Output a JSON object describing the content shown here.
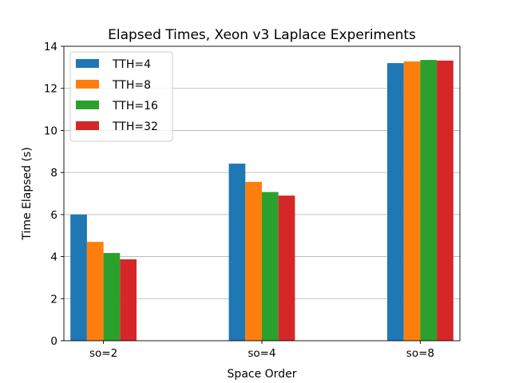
{
  "chart_data": {
    "type": "bar",
    "title": "Elapsed Times, Xeon v3 Laplace Experiments",
    "xlabel": "Space Order",
    "ylabel": "Time Elapsed (s)",
    "categories": [
      "so=2",
      "so=4",
      "so=8"
    ],
    "series": [
      {
        "name": "TTH=4",
        "color": "#1f77b4",
        "values": [
          6.0,
          8.42,
          13.2
        ]
      },
      {
        "name": "TTH=8",
        "color": "#ff7f0e",
        "values": [
          4.7,
          7.55,
          13.28
        ]
      },
      {
        "name": "TTH=16",
        "color": "#2ca02c",
        "values": [
          4.17,
          7.07,
          13.35
        ]
      },
      {
        "name": "TTH=32",
        "color": "#d62728",
        "values": [
          3.87,
          6.9,
          13.32
        ]
      }
    ],
    "ylim": [
      0,
      14
    ],
    "yticks": [
      0,
      2,
      4,
      6,
      8,
      10,
      12,
      14
    ],
    "grid": "y",
    "legend_position": "top-left"
  }
}
